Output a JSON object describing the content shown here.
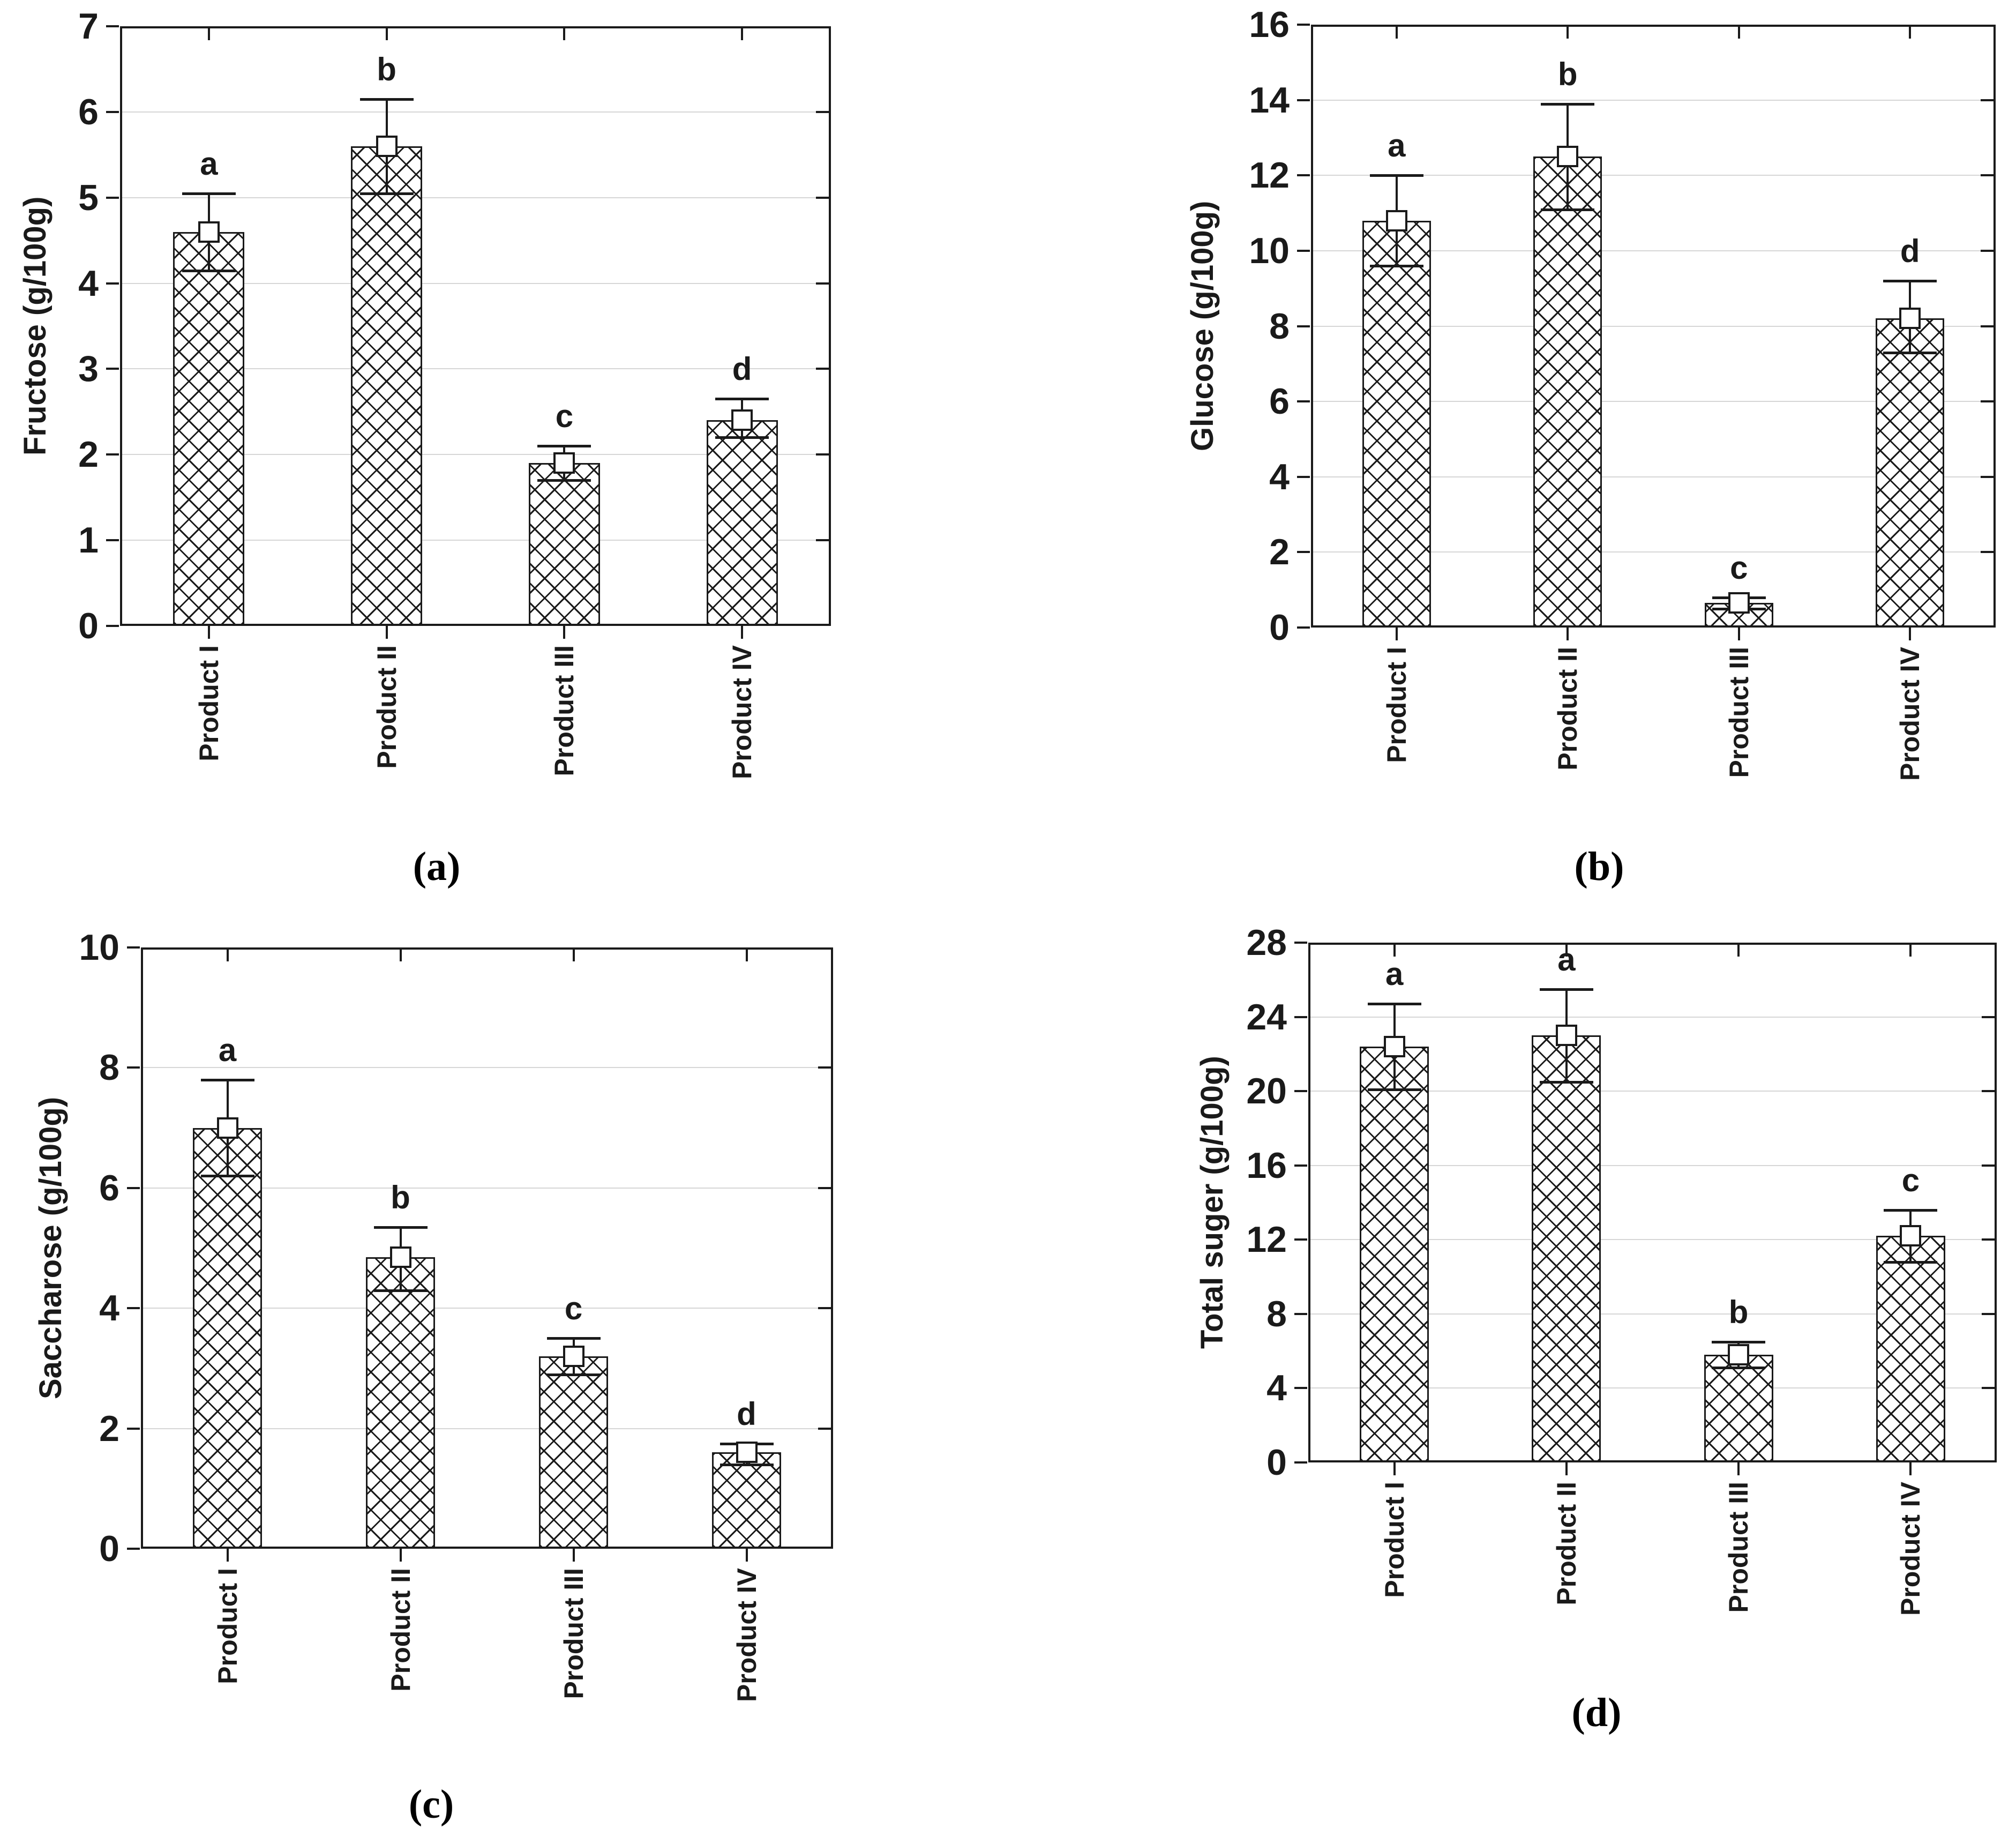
{
  "figure": {
    "background": "#ffffff",
    "line_color": "#1a1a1a",
    "gridline_color": "#d6d6d6",
    "bar_fill": "#ffffff",
    "bar_hatch": "diagonal-crosshatch"
  },
  "chart_data": [
    {
      "id": "a",
      "type": "bar",
      "caption": "(a)",
      "title": "",
      "xlabel": "",
      "ylabel": "Fructose (g/100g)",
      "categories": [
        "Product I",
        "Product II",
        "Product III",
        "Product IV"
      ],
      "values": [
        4.6,
        5.6,
        1.9,
        2.4
      ],
      "error_upper": [
        5.05,
        6.15,
        2.1,
        2.65
      ],
      "error_lower": [
        4.15,
        5.05,
        1.7,
        2.2
      ],
      "sig_letters": [
        "a",
        "b",
        "c",
        "d"
      ],
      "ylim": [
        0,
        7
      ],
      "yticks": [
        0,
        1,
        2,
        3,
        4,
        5,
        6,
        7
      ],
      "grid": true,
      "legend": false
    },
    {
      "id": "b",
      "type": "bar",
      "caption": "(b)",
      "title": "",
      "xlabel": "",
      "ylabel": "Glucose (g/100g)",
      "categories": [
        "Product I",
        "Product II",
        "Product III",
        "Product IV"
      ],
      "values": [
        10.8,
        12.5,
        0.65,
        8.2
      ],
      "error_upper": [
        12.0,
        13.9,
        0.8,
        9.2
      ],
      "error_lower": [
        9.6,
        11.1,
        0.5,
        7.3
      ],
      "sig_letters": [
        "a",
        "b",
        "c",
        "d"
      ],
      "ylim": [
        0,
        16
      ],
      "yticks": [
        0,
        2,
        4,
        6,
        8,
        10,
        12,
        14,
        16
      ],
      "grid": true,
      "legend": false
    },
    {
      "id": "c",
      "type": "bar",
      "caption": "(c)",
      "title": "",
      "xlabel": "",
      "ylabel": "Saccharose (g/100g)",
      "categories": [
        "Product I",
        "Product II",
        "Product III",
        "Product IV"
      ],
      "values": [
        7.0,
        4.85,
        3.2,
        1.6
      ],
      "error_upper": [
        7.8,
        5.35,
        3.5,
        1.75
      ],
      "error_lower": [
        6.2,
        4.3,
        2.9,
        1.4
      ],
      "sig_letters": [
        "a",
        "b",
        "c",
        "d"
      ],
      "ylim": [
        0,
        10
      ],
      "yticks": [
        0,
        2,
        4,
        6,
        8,
        10
      ],
      "grid": true,
      "legend": false
    },
    {
      "id": "d",
      "type": "bar",
      "caption": "(d)",
      "title": "",
      "xlabel": "",
      "ylabel": "Total suger (g/100g)",
      "categories": [
        "Product I",
        "Product II",
        "Product III",
        "Product IV"
      ],
      "values": [
        22.4,
        23.0,
        5.8,
        12.2
      ],
      "error_upper": [
        24.7,
        25.5,
        6.5,
        13.6
      ],
      "error_lower": [
        20.1,
        20.5,
        5.1,
        10.8
      ],
      "sig_letters": [
        "a",
        "a",
        "b",
        "c"
      ],
      "ylim": [
        0,
        28
      ],
      "yticks": [
        0,
        4,
        8,
        12,
        16,
        20,
        24,
        28
      ],
      "grid": true,
      "legend": false
    }
  ]
}
